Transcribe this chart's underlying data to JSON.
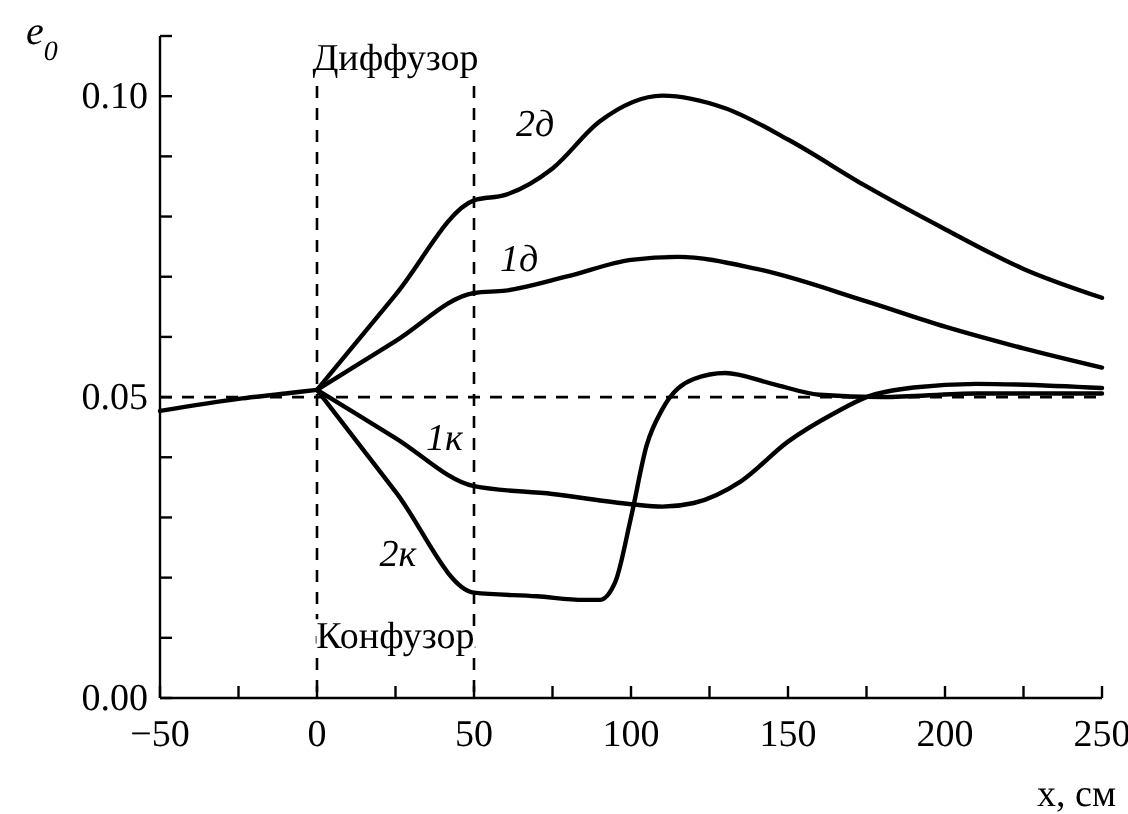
{
  "chart_data": {
    "type": "line",
    "xlabel": "x, см",
    "ylabel": "e$_{0}$",
    "xlim": [
      -50,
      250
    ],
    "ylim": [
      0,
      0.11
    ],
    "xticks": [
      {
        "value": -50,
        "label": "−50"
      },
      {
        "value": -25,
        "label": null
      },
      0,
      {
        "value": 25,
        "label": null
      },
      50,
      {
        "value": 75,
        "label": null
      },
      100,
      {
        "value": 125,
        "label": null
      },
      150,
      {
        "value": 175,
        "label": null
      },
      200,
      {
        "value": 225,
        "label": null
      },
      250
    ],
    "yticks": [
      {
        "value": 0,
        "label": "0.00"
      },
      {
        "value": 0.01,
        "label": null
      },
      {
        "value": 0.02,
        "label": null
      },
      {
        "value": 0.03,
        "label": null
      },
      {
        "value": 0.04,
        "label": null
      },
      {
        "value": 0.05,
        "label": "0.05"
      },
      {
        "value": 0.06,
        "label": null
      },
      {
        "value": 0.07,
        "label": null
      },
      {
        "value": 0.08,
        "label": null
      },
      {
        "value": 0.09,
        "label": null
      },
      {
        "value": 0.1,
        "label": "0.10"
      },
      {
        "value": 0.11,
        "label": null
      }
    ],
    "grid": false,
    "line_style": "solid",
    "series": [
      {
        "color": "#000000",
        "x": [
          -50,
          -25,
          -10,
          0
        ],
        "values": [
          0.0477,
          0.0497,
          0.0506,
          0.0512
        ]
      },
      {
        "name": "2д",
        "color": "#000000",
        "x": [
          0,
          25,
          50,
          60,
          75,
          90,
          110,
          130,
          150,
          175,
          200,
          225,
          250
        ],
        "values": [
          0.0512,
          0.067,
          0.0827,
          0.0836,
          0.088,
          0.0958,
          0.1001,
          0.098,
          0.0928,
          0.085,
          0.0779,
          0.0713,
          0.0665
        ]
      },
      {
        "name": "1д",
        "color": "#000000",
        "x": [
          0,
          25,
          50,
          60,
          80,
          100,
          115,
          140,
          175,
          200,
          225,
          250
        ],
        "values": [
          0.0512,
          0.0593,
          0.0673,
          0.0677,
          0.0701,
          0.0728,
          0.0733,
          0.0713,
          0.0659,
          0.0617,
          0.0581,
          0.0549
        ]
      },
      {
        "name": "1к",
        "color": "#000000",
        "x": [
          0,
          25,
          50,
          75,
          100,
          110,
          120,
          135,
          150,
          165,
          175,
          190,
          210,
          250
        ],
        "values": [
          0.0512,
          0.0432,
          0.0352,
          0.0339,
          0.0322,
          0.0318,
          0.0324,
          0.036,
          0.0426,
          0.0474,
          0.05,
          0.0516,
          0.0522,
          0.0515
        ]
      },
      {
        "name": "2к",
        "color": "#000000",
        "x": [
          0,
          25,
          50,
          70,
          85,
          90,
          95,
          100,
          105,
          110,
          120,
          130,
          145,
          160,
          180,
          210,
          250
        ],
        "values": [
          0.0512,
          0.0343,
          0.0175,
          0.0169,
          0.0163,
          0.0163,
          0.0193,
          0.03,
          0.042,
          0.048,
          0.053,
          0.054,
          0.0522,
          0.0504,
          0.05,
          0.0506,
          0.0506
        ]
      }
    ],
    "ref_lines": [
      {
        "axis": "x",
        "value": 0,
        "line_style": "dashed",
        "color": "#000000"
      },
      {
        "axis": "x",
        "value": 50,
        "line_style": "dashed",
        "color": "#000000"
      },
      {
        "axis": "y",
        "value": 0.05,
        "line_style": "dashed",
        "color": "#000000"
      }
    ],
    "annotations": [
      "Диффузор",
      "Конфузор"
    ]
  }
}
